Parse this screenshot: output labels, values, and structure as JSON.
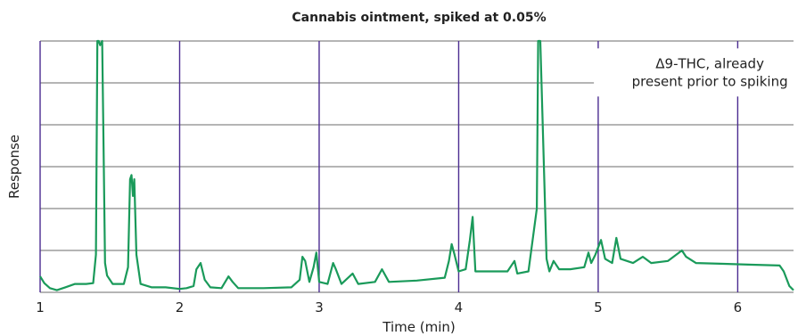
{
  "chart_data": {
    "type": "line",
    "title": "Cannabis ointment, spiked at 0.05%",
    "xlabel": "Time (min)",
    "ylabel": "Response",
    "xlim": [
      1,
      6.4
    ],
    "ylim": [
      0,
      6
    ],
    "x_ticks": [
      1,
      2,
      3,
      4,
      5,
      6
    ],
    "x_tick_labels": [
      "1",
      "2",
      "3",
      "4",
      "5",
      "6"
    ],
    "y_ticks": [
      0,
      1,
      2,
      3,
      4,
      5,
      6
    ],
    "grid": true,
    "legend": "none",
    "annotations": [
      {
        "lines": [
          "Δ9-THC, already",
          "present prior to spiking"
        ],
        "x": 5.8,
        "y": 5.1
      }
    ],
    "colors": {
      "trace": "#1a9a5a",
      "vertical_grid": "#4b2c91",
      "horizontal_grid": "#3a3a3a"
    },
    "series": [
      {
        "points": [
          [
            1.0,
            0.38
          ],
          [
            1.03,
            0.22
          ],
          [
            1.07,
            0.1
          ],
          [
            1.12,
            0.05
          ],
          [
            1.18,
            0.12
          ],
          [
            1.25,
            0.2
          ],
          [
            1.33,
            0.2
          ],
          [
            1.38,
            0.22
          ],
          [
            1.4,
            0.9
          ],
          [
            1.41,
            6.0
          ],
          [
            1.42,
            6.0
          ],
          [
            1.43,
            5.9
          ],
          [
            1.445,
            6.0
          ],
          [
            1.455,
            3.4
          ],
          [
            1.465,
            0.7
          ],
          [
            1.48,
            0.4
          ],
          [
            1.52,
            0.2
          ],
          [
            1.6,
            0.2
          ],
          [
            1.63,
            0.6
          ],
          [
            1.645,
            2.7
          ],
          [
            1.655,
            2.8
          ],
          [
            1.665,
            2.3
          ],
          [
            1.675,
            2.7
          ],
          [
            1.69,
            0.9
          ],
          [
            1.72,
            0.2
          ],
          [
            1.8,
            0.12
          ],
          [
            1.9,
            0.12
          ],
          [
            2.0,
            0.08
          ],
          [
            2.05,
            0.1
          ],
          [
            2.1,
            0.15
          ],
          [
            2.12,
            0.55
          ],
          [
            2.15,
            0.7
          ],
          [
            2.18,
            0.3
          ],
          [
            2.22,
            0.12
          ],
          [
            2.3,
            0.1
          ],
          [
            2.35,
            0.38
          ],
          [
            2.38,
            0.25
          ],
          [
            2.42,
            0.1
          ],
          [
            2.6,
            0.1
          ],
          [
            2.8,
            0.12
          ],
          [
            2.86,
            0.3
          ],
          [
            2.88,
            0.85
          ],
          [
            2.9,
            0.75
          ],
          [
            2.93,
            0.25
          ],
          [
            2.96,
            0.6
          ],
          [
            2.98,
            0.95
          ],
          [
            3.0,
            0.25
          ],
          [
            3.06,
            0.2
          ],
          [
            3.1,
            0.7
          ],
          [
            3.12,
            0.55
          ],
          [
            3.16,
            0.2
          ],
          [
            3.24,
            0.45
          ],
          [
            3.28,
            0.2
          ],
          [
            3.4,
            0.25
          ],
          [
            3.45,
            0.55
          ],
          [
            3.5,
            0.25
          ],
          [
            3.7,
            0.28
          ],
          [
            3.9,
            0.35
          ],
          [
            3.93,
            0.75
          ],
          [
            3.95,
            1.15
          ],
          [
            3.97,
            0.9
          ],
          [
            4.0,
            0.5
          ],
          [
            4.05,
            0.55
          ],
          [
            4.08,
            1.25
          ],
          [
            4.1,
            1.8
          ],
          [
            4.12,
            0.5
          ],
          [
            4.2,
            0.5
          ],
          [
            4.35,
            0.5
          ],
          [
            4.4,
            0.75
          ],
          [
            4.42,
            0.45
          ],
          [
            4.5,
            0.5
          ],
          [
            4.56,
            2.0
          ],
          [
            4.57,
            6.0
          ],
          [
            4.585,
            6.0
          ],
          [
            4.6,
            4.3
          ],
          [
            4.63,
            0.8
          ],
          [
            4.65,
            0.5
          ],
          [
            4.68,
            0.75
          ],
          [
            4.72,
            0.55
          ],
          [
            4.8,
            0.55
          ],
          [
            4.9,
            0.6
          ],
          [
            4.93,
            0.95
          ],
          [
            4.95,
            0.7
          ],
          [
            4.98,
            0.9
          ],
          [
            5.02,
            1.25
          ],
          [
            5.05,
            0.8
          ],
          [
            5.1,
            0.7
          ],
          [
            5.13,
            1.3
          ],
          [
            5.16,
            0.8
          ],
          [
            5.25,
            0.7
          ],
          [
            5.32,
            0.85
          ],
          [
            5.38,
            0.7
          ],
          [
            5.5,
            0.75
          ],
          [
            5.6,
            1.0
          ],
          [
            5.63,
            0.85
          ],
          [
            5.7,
            0.7
          ],
          [
            5.9,
            0.68
          ],
          [
            6.1,
            0.66
          ],
          [
            6.3,
            0.64
          ],
          [
            6.33,
            0.5
          ],
          [
            6.37,
            0.15
          ],
          [
            6.4,
            0.05
          ]
        ]
      }
    ]
  }
}
